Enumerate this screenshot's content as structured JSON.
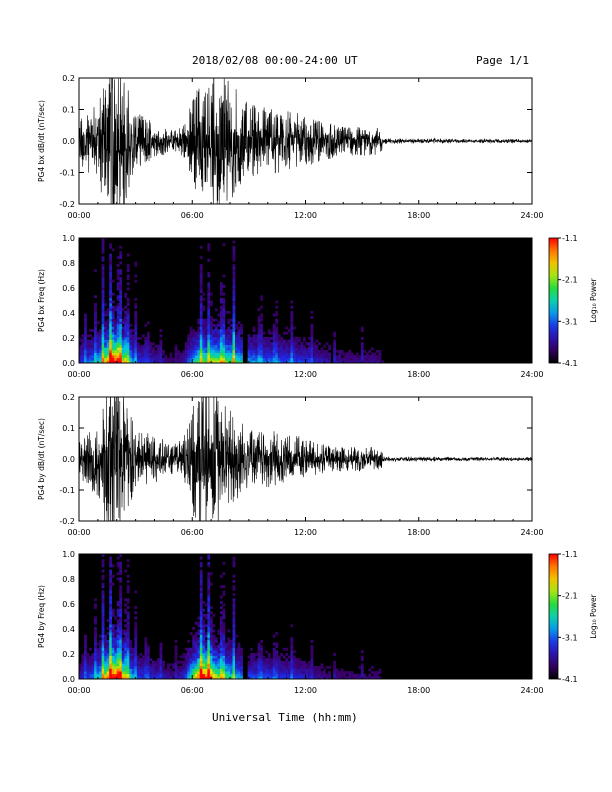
{
  "header": {
    "title": "2018/02/08  00:00-24:00 UT",
    "page": "Page 1/1"
  },
  "footer": {
    "xlabel": "Universal Time (hh:mm)"
  },
  "colorbar": {
    "label": "Log₁₀ Power",
    "ticks": [
      "-1.1",
      "-2.1",
      "-3.1",
      "-4.1"
    ],
    "range": [
      -4.1,
      -1.1
    ]
  },
  "chart_data": [
    {
      "type": "line",
      "title": "",
      "ylabel": "PG4 bx dB/dt (nT/sec)",
      "xlabel": "",
      "xticks": [
        "00:00",
        "06:00",
        "12:00",
        "18:00",
        "24:00"
      ],
      "yticks": [
        "0.2",
        "0.1",
        "0.0",
        "-0.1",
        "-0.2"
      ],
      "xlim_hours": [
        0,
        24
      ],
      "ylim": [
        -0.2,
        0.2
      ],
      "series": [
        {
          "x_hours": [
            0,
            1.0,
            1.7,
            2.0,
            2.4,
            3.0,
            4.0,
            5.0,
            5.6,
            6.3,
            6.8,
            7.2,
            8.1,
            9.0,
            10.0,
            11.5,
            13.0,
            14.0,
            16.0,
            16.1,
            18.0,
            21.0,
            24.0
          ],
          "amplitude": [
            0.05,
            0.08,
            0.2,
            0.2,
            0.14,
            0.06,
            0.04,
            0.02,
            0.04,
            0.12,
            0.12,
            0.14,
            0.12,
            0.08,
            0.07,
            0.06,
            0.04,
            0.03,
            0.03,
            0.006,
            0.005,
            0.004,
            0.004
          ]
        }
      ]
    },
    {
      "type": "heatmap",
      "title": "",
      "ylabel": "PG4 bx Freq (Hz)",
      "xlabel": "",
      "xticks": [
        "00:00",
        "06:00",
        "12:00",
        "18:00",
        "24:00"
      ],
      "yticks": [
        "1.0",
        "0.8",
        "0.6",
        "0.4",
        "0.2",
        "0.0"
      ],
      "xlim_hours": [
        0,
        24
      ],
      "ylim": [
        0,
        1.0
      ],
      "colorscale": "rainbow, log10 power",
      "bursts_hours": [
        0.3,
        0.9,
        1.25,
        1.7,
        2.15,
        2.55,
        3.0,
        3.6,
        4.3,
        5.1,
        6.5,
        6.9,
        7.6,
        8.2,
        9.6,
        10.4,
        11.3,
        12.3,
        13.5,
        15.0,
        16.05
      ],
      "gaps_hours": [
        8.8,
        13.45
      ]
    },
    {
      "type": "line",
      "title": "",
      "ylabel": "PG4 by dB/dt (nT/sec)",
      "xlabel": "",
      "xticks": [
        "00:00",
        "06:00",
        "12:00",
        "18:00",
        "24:00"
      ],
      "yticks": [
        "0.2",
        "0.1",
        "0.0",
        "-0.1",
        "-0.2"
      ],
      "xlim_hours": [
        0,
        24
      ],
      "ylim": [
        -0.2,
        0.2
      ],
      "series": [
        {
          "x_hours": [
            0,
            1.0,
            1.7,
            2.0,
            2.4,
            3.0,
            4.0,
            5.0,
            5.6,
            6.3,
            6.8,
            7.2,
            8.1,
            9.0,
            10.0,
            11.5,
            13.0,
            14.0,
            16.0,
            16.1,
            18.0,
            21.0,
            24.0
          ],
          "amplitude": [
            0.04,
            0.08,
            0.2,
            0.2,
            0.15,
            0.06,
            0.05,
            0.03,
            0.05,
            0.18,
            0.2,
            0.15,
            0.1,
            0.06,
            0.06,
            0.05,
            0.03,
            0.025,
            0.025,
            0.005,
            0.005,
            0.004,
            0.004
          ]
        }
      ]
    },
    {
      "type": "heatmap",
      "title": "",
      "ylabel": "PG4 by Freq (Hz)",
      "xlabel": "",
      "xticks": [
        "00:00",
        "06:00",
        "12:00",
        "18:00",
        "24:00"
      ],
      "yticks": [
        "1.0",
        "0.8",
        "0.6",
        "0.4",
        "0.2",
        "0.0"
      ],
      "xlim_hours": [
        0,
        24
      ],
      "ylim": [
        0,
        1.0
      ],
      "colorscale": "rainbow, log10 power",
      "bursts_hours": [
        0.3,
        0.9,
        1.25,
        1.7,
        2.15,
        2.55,
        3.0,
        3.6,
        4.3,
        5.1,
        6.5,
        6.9,
        7.6,
        8.2,
        9.6,
        10.4,
        11.3,
        12.3,
        13.5,
        15.0,
        16.05
      ],
      "gaps_hours": [
        8.8,
        13.45
      ]
    }
  ]
}
